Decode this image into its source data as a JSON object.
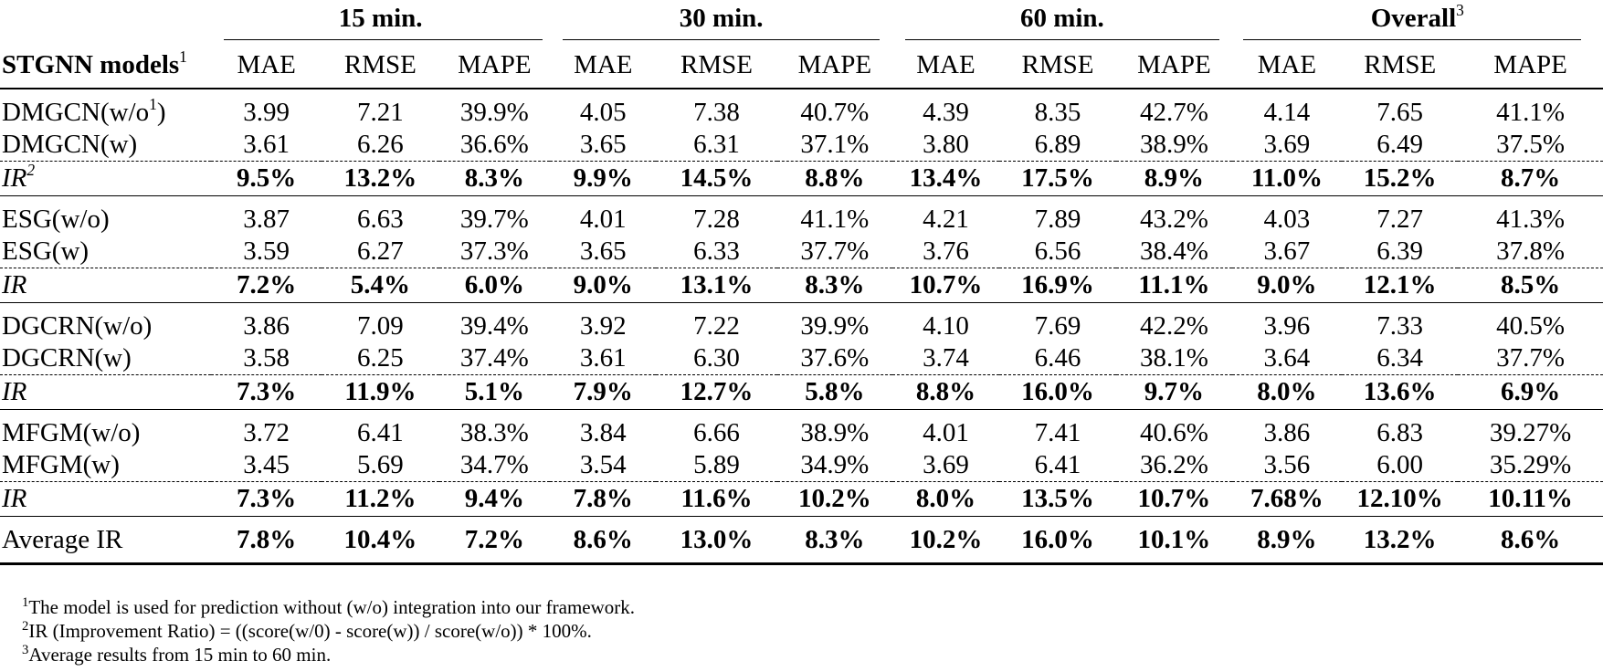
{
  "table": {
    "corner_label": "STGNN models",
    "corner_sup": "1",
    "groups": [
      {
        "label": "15 min.",
        "sup": ""
      },
      {
        "label": "30 min.",
        "sup": ""
      },
      {
        "label": "60 min.",
        "sup": ""
      },
      {
        "label": "Overall",
        "sup": "3"
      }
    ],
    "metrics": [
      "MAE",
      "RMSE",
      "MAPE"
    ],
    "blocks": [
      {
        "rows": [
          {
            "model": "DMGCN(w/o",
            "model_sup": "1",
            "model_suffix": ")",
            "type": "data",
            "values": [
              "3.99",
              "7.21",
              "39.9%",
              "4.05",
              "7.38",
              "40.7%",
              "4.39",
              "8.35",
              "42.7%",
              "4.14",
              "7.65",
              "41.1%"
            ]
          },
          {
            "model": "DMGCN(w)",
            "model_sup": "",
            "model_suffix": "",
            "type": "data",
            "values": [
              "3.61",
              "6.26",
              "36.6%",
              "3.65",
              "6.31",
              "37.1%",
              "3.80",
              "6.89",
              "38.9%",
              "3.69",
              "6.49",
              "37.5%"
            ]
          },
          {
            "model": "IR",
            "model_sup": "2",
            "model_suffix": "",
            "type": "ir",
            "values": [
              "9.5%",
              "13.2%",
              "8.3%",
              "9.9%",
              "14.5%",
              "8.8%",
              "13.4%",
              "17.5%",
              "8.9%",
              "11.0%",
              "15.2%",
              "8.7%"
            ]
          }
        ]
      },
      {
        "rows": [
          {
            "model": "ESG(w/o)",
            "model_sup": "",
            "model_suffix": "",
            "type": "data",
            "values": [
              "3.87",
              "6.63",
              "39.7%",
              "4.01",
              "7.28",
              "41.1%",
              "4.21",
              "7.89",
              "43.2%",
              "4.03",
              "7.27",
              "41.3%"
            ]
          },
          {
            "model": "ESG(w)",
            "model_sup": "",
            "model_suffix": "",
            "type": "data",
            "values": [
              "3.59",
              "6.27",
              "37.3%",
              "3.65",
              "6.33",
              "37.7%",
              "3.76",
              "6.56",
              "38.4%",
              "3.67",
              "6.39",
              "37.8%"
            ]
          },
          {
            "model": "IR",
            "model_sup": "",
            "model_suffix": "",
            "type": "ir",
            "values": [
              "7.2%",
              "5.4%",
              "6.0%",
              "9.0%",
              "13.1%",
              "8.3%",
              "10.7%",
              "16.9%",
              "11.1%",
              "9.0%",
              "12.1%",
              "8.5%"
            ]
          }
        ]
      },
      {
        "rows": [
          {
            "model": "DGCRN(w/o)",
            "model_sup": "",
            "model_suffix": "",
            "type": "data",
            "values": [
              "3.86",
              "7.09",
              "39.4%",
              "3.92",
              "7.22",
              "39.9%",
              "4.10",
              "7.69",
              "42.2%",
              "3.96",
              "7.33",
              "40.5%"
            ]
          },
          {
            "model": "DGCRN(w)",
            "model_sup": "",
            "model_suffix": "",
            "type": "data",
            "values": [
              "3.58",
              "6.25",
              "37.4%",
              "3.61",
              "6.30",
              "37.6%",
              "3.74",
              "6.46",
              "38.1%",
              "3.64",
              "6.34",
              "37.7%"
            ]
          },
          {
            "model": "IR",
            "model_sup": "",
            "model_suffix": "",
            "type": "ir",
            "values": [
              "7.3%",
              "11.9%",
              "5.1%",
              "7.9%",
              "12.7%",
              "5.8%",
              "8.8%",
              "16.0%",
              "9.7%",
              "8.0%",
              "13.6%",
              "6.9%"
            ]
          }
        ]
      },
      {
        "rows": [
          {
            "model": "MFGM(w/o)",
            "model_sup": "",
            "model_suffix": "",
            "type": "data",
            "values": [
              "3.72",
              "6.41",
              "38.3%",
              "3.84",
              "6.66",
              "38.9%",
              "4.01",
              "7.41",
              "40.6%",
              "3.86",
              "6.83",
              "39.27%"
            ]
          },
          {
            "model": "MFGM(w)",
            "model_sup": "",
            "model_suffix": "",
            "type": "data",
            "values": [
              "3.45",
              "5.69",
              "34.7%",
              "3.54",
              "5.89",
              "34.9%",
              "3.69",
              "6.41",
              "36.2%",
              "3.56",
              "6.00",
              "35.29%"
            ]
          },
          {
            "model": "IR",
            "model_sup": "",
            "model_suffix": "",
            "type": "ir",
            "values": [
              "7.3%",
              "11.2%",
              "9.4%",
              "7.8%",
              "11.6%",
              "10.2%",
              "8.0%",
              "13.5%",
              "10.7%",
              "7.68%",
              "12.10%",
              "10.11%"
            ]
          }
        ]
      }
    ],
    "average": {
      "label": "Average IR",
      "values": [
        "7.8%",
        "10.4%",
        "7.2%",
        "8.6%",
        "13.0%",
        "8.3%",
        "10.2%",
        "16.0%",
        "10.1%",
        "8.9%",
        "13.2%",
        "8.6%"
      ]
    }
  },
  "footnotes": [
    {
      "mark": "1",
      "text": "The model is used for prediction without (w/o) integration into our framework."
    },
    {
      "mark": "2",
      "text": "IR (Improvement Ratio) = ((score(w/0) - score(w)) / score(w/o)) * 100%."
    },
    {
      "mark": "3",
      "text": "Average results from 15 min to 60 min."
    }
  ]
}
